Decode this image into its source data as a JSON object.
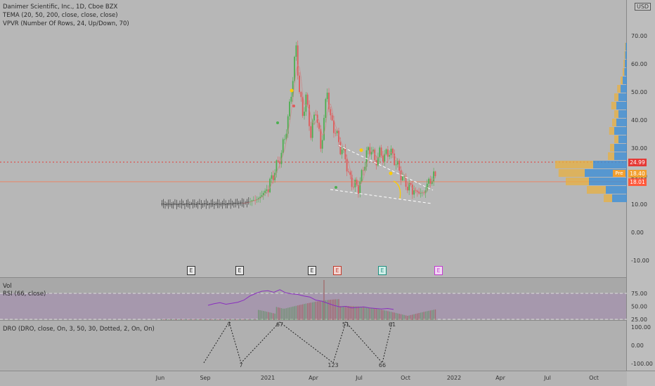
{
  "header": {
    "title": "Danimer Scientific, Inc., 1D, Cboe BZX",
    "ind1": "TEMA (20, 50, 200, close, close, close)",
    "ind2": "VPVR (Number Of Rows, 24, Up/Down, 70)",
    "currency": "USD"
  },
  "price_boxes": {
    "resistance": "24.99",
    "pre": "18.40",
    "pre_label": "Pre",
    "last": "18.01"
  },
  "lower_panels": {
    "vol_label": "Vol",
    "rsi_label": "RSI (66, close)",
    "dro_label": "DRO (DRO, close, On, 3, 50, 30, Dotted, 2, On, On)"
  },
  "earnings_badges": [
    "E",
    "E",
    "E",
    "E",
    "E",
    "E"
  ],
  "colors": {
    "up": "#4caf50",
    "down": "#e05a5a",
    "tema": "#d08080",
    "rsi": "#8a2fbf",
    "wedge": "#ffffff",
    "resistance": "#e53935",
    "last": "#ff7043",
    "vp_up": "#3d8fd6",
    "vp_down": "#e8b040",
    "zigzag": "#222222"
  },
  "chart_data": [
    {
      "type": "line",
      "title": "Danimer Scientific, Inc., 1D, Cboe BZX",
      "y_axis_ticks": [
        "-10.00",
        "0.00",
        "10.00",
        "20.00",
        "30.00",
        "40.00",
        "50.00",
        "60.00",
        "70.00"
      ],
      "ylim": [
        -12,
        75
      ],
      "x_axis_ticks": [
        "Jun",
        "Sep",
        "2021",
        "Apr",
        "Jul",
        "Oct",
        "2022",
        "Apr",
        "Jul",
        "Oct"
      ],
      "series": [
        {
          "values_x": [
            "2020-07",
            "2020-08",
            "2020-09",
            "2020-10",
            "2020-11",
            "2020-12",
            "2021-01",
            "2021-02",
            "2021-03",
            "2021-04",
            "2021-05",
            "2021-06",
            "2021-07",
            "2021-08",
            "2021-09"
          ],
          "close": [
            9.8,
            10.0,
            10.0,
            10.1,
            10.4,
            14,
            22,
            65,
            42,
            48,
            18,
            26,
            29,
            15,
            21
          ]
        }
      ],
      "horizontal_lines": [
        {
          "value": 24.99
        },
        {
          "value": 18.01
        }
      ],
      "volume_profile_rows": [
        {
          "price": 12,
          "up": 0.35,
          "down": 0.2
        },
        {
          "price": 15,
          "up": 0.5,
          "down": 0.45
        },
        {
          "price": 18,
          "up": 0.9,
          "down": 0.55
        },
        {
          "price": 21,
          "up": 1.0,
          "down": 0.62
        },
        {
          "price": 24,
          "up": 0.8,
          "down": 0.9
        },
        {
          "price": 27,
          "up": 0.3,
          "down": 0.15
        },
        {
          "price": 30,
          "up": 0.3,
          "down": 0.1
        },
        {
          "price": 33,
          "up": 0.2,
          "down": 0.1
        },
        {
          "price": 36,
          "up": 0.3,
          "down": 0.12
        },
        {
          "price": 39,
          "up": 0.25,
          "down": 0.1
        },
        {
          "price": 42,
          "up": 0.2,
          "down": 0.1
        },
        {
          "price": 45,
          "up": 0.25,
          "down": 0.12
        },
        {
          "price": 48,
          "up": 0.2,
          "down": 0.1
        },
        {
          "price": 51,
          "up": 0.15,
          "down": 0.08
        },
        {
          "price": 54,
          "up": 0.1,
          "down": 0.05
        },
        {
          "price": 57,
          "up": 0.06,
          "down": 0.04
        },
        {
          "price": 60,
          "up": 0.05,
          "down": 0.03
        },
        {
          "price": 63,
          "up": 0.04,
          "down": 0.02
        },
        {
          "price": 66,
          "up": 0.03,
          "down": 0.02
        }
      ]
    },
    {
      "type": "line",
      "title": "RSI (66, close)",
      "y_axis_ticks": [
        "25.00",
        "50.00",
        "75.00"
      ],
      "ylim": [
        25,
        85
      ],
      "values": [
        52,
        55,
        57,
        54,
        56,
        58,
        62,
        70,
        75,
        79,
        80,
        77,
        82,
        76,
        74,
        73,
        70,
        68,
        62,
        60,
        56,
        52,
        49,
        50,
        47,
        48,
        49,
        47,
        46,
        45,
        46,
        44
      ]
    },
    {
      "type": "line",
      "title": "DRO (DRO, close, On, 3, 50, 30, Dotted, 2, On, On)",
      "y_axis_ticks": [
        "100.00",
        "0.00",
        "-100.00"
      ],
      "ylim": [
        -110,
        110
      ],
      "zigzag": [
        {
          "value": -100,
          "label": ""
        },
        {
          "value": 100,
          "label": "7"
        },
        {
          "value": -100,
          "label": "7"
        },
        {
          "value": 100,
          "label": "67"
        },
        {
          "value": -100,
          "label": "123"
        },
        {
          "value": 100,
          "label": "51"
        },
        {
          "value": -100,
          "label": "66"
        },
        {
          "value": 100,
          "label": "61"
        }
      ]
    }
  ]
}
